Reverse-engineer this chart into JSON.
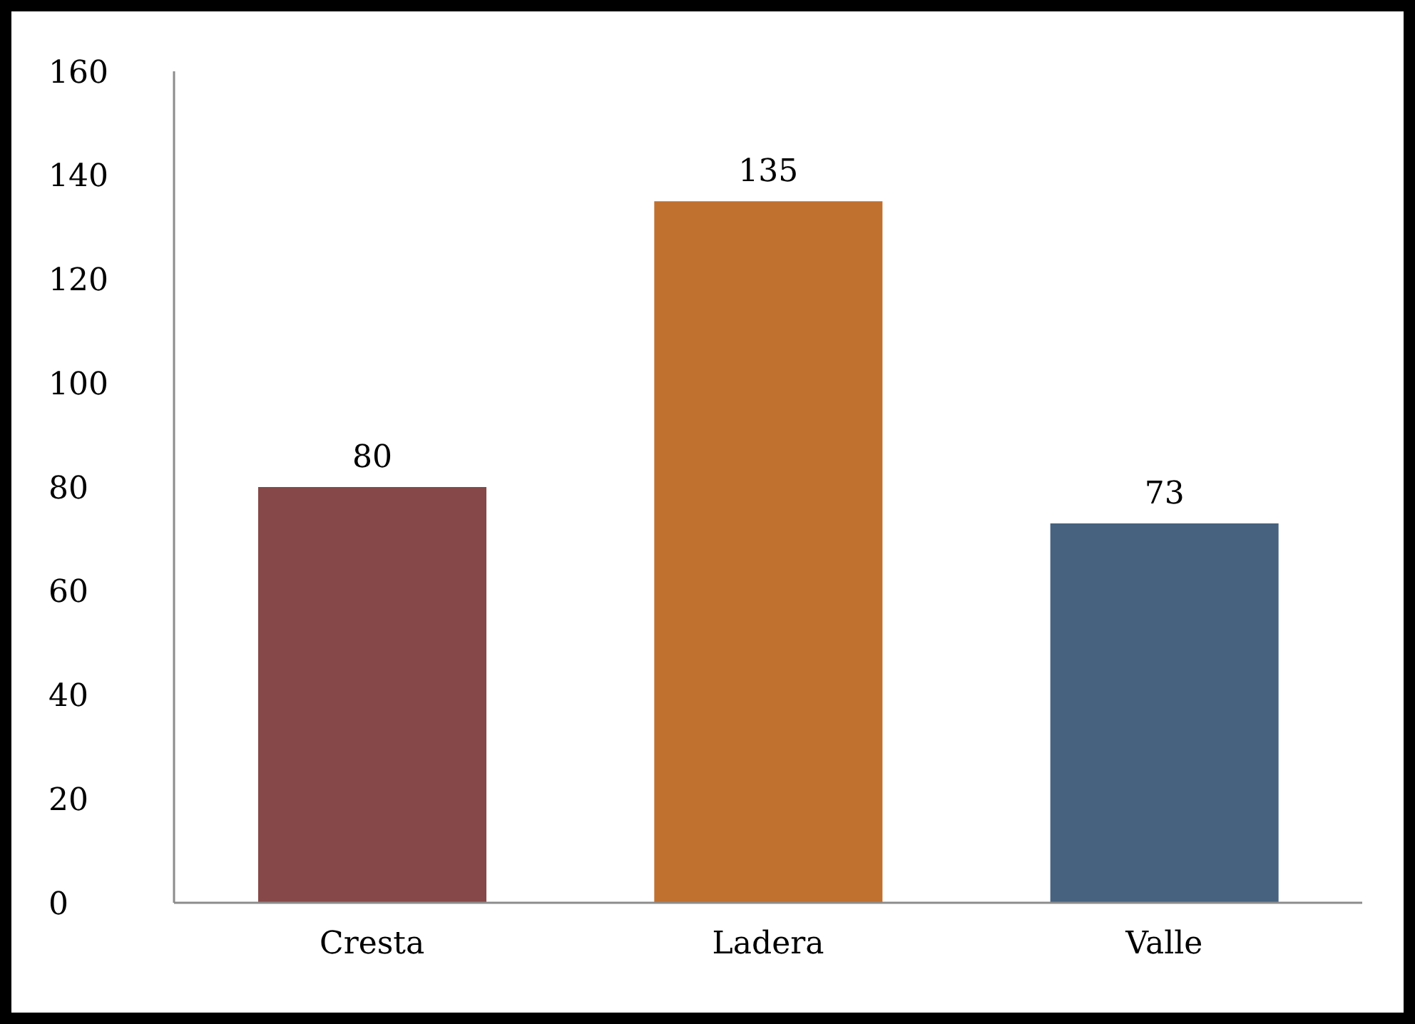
{
  "chart_data": {
    "type": "bar",
    "categories": [
      "Cresta",
      "Ladera",
      "Valle"
    ],
    "values": [
      80,
      135,
      73
    ],
    "colors": [
      "#864848",
      "#c0702f",
      "#46627f"
    ],
    "ylim": [
      0,
      160
    ],
    "yticks": [
      0,
      20,
      40,
      60,
      80,
      100,
      120,
      140,
      160
    ],
    "data_labels": true,
    "grid": false,
    "legend": false
  }
}
